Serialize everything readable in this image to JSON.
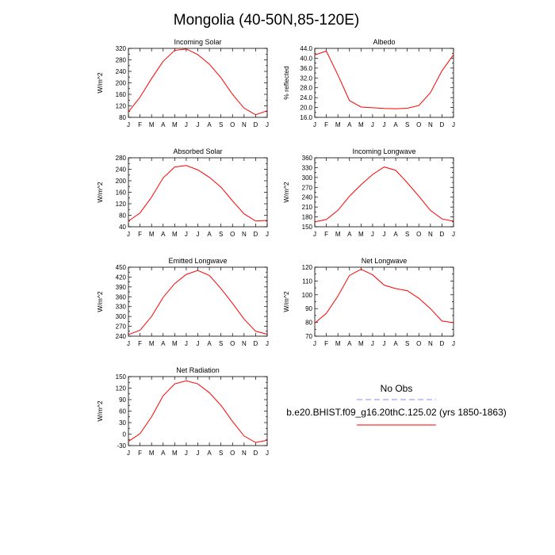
{
  "title": "Mongolia (40-50N,85-120E)",
  "chart_data": [
    {
      "type": "line",
      "title": "Incoming Solar",
      "ylabel": "W/m^2",
      "categories": [
        "J",
        "F",
        "M",
        "A",
        "M",
        "J",
        "J",
        "A",
        "S",
        "O",
        "N",
        "D",
        "J"
      ],
      "ylim": [
        80,
        320
      ],
      "yticks": [
        "80",
        "120",
        "160",
        "200",
        "240",
        "280",
        "320"
      ],
      "values": [
        99,
        150,
        215,
        275,
        313,
        318,
        298,
        265,
        218,
        160,
        112,
        89,
        103
      ]
    },
    {
      "type": "line",
      "title": "Albedo",
      "ylabel": "% reflected",
      "categories": [
        "J",
        "F",
        "M",
        "A",
        "M",
        "J",
        "J",
        "A",
        "S",
        "O",
        "N",
        "D",
        "J"
      ],
      "ylim": [
        16,
        44
      ],
      "yticks": [
        "16.0",
        "20.0",
        "24.0",
        "28.0",
        "32.0",
        "36.0",
        "40.0",
        "44.0"
      ],
      "values": [
        41.3,
        42.9,
        33.2,
        22.8,
        20.2,
        19.9,
        19.6,
        19.5,
        19.7,
        20.8,
        26.0,
        34.9,
        41.4
      ]
    },
    {
      "type": "line",
      "title": "Absorbed Solar",
      "ylabel": "W/m^2",
      "categories": [
        "J",
        "F",
        "M",
        "A",
        "M",
        "J",
        "J",
        "A",
        "S",
        "O",
        "N",
        "D",
        "J"
      ],
      "ylim": [
        40,
        280
      ],
      "yticks": [
        "40",
        "80",
        "120",
        "160",
        "200",
        "240",
        "280"
      ],
      "values": [
        60,
        88,
        143,
        210,
        248,
        253,
        238,
        212,
        178,
        130,
        85,
        60,
        62
      ]
    },
    {
      "type": "line",
      "title": "Incoming Longwave",
      "ylabel": "W/m^2",
      "categories": [
        "J",
        "F",
        "M",
        "A",
        "M",
        "J",
        "J",
        "A",
        "S",
        "O",
        "N",
        "D",
        "J"
      ],
      "ylim": [
        150,
        360
      ],
      "yticks": [
        "150",
        "180",
        "210",
        "240",
        "270",
        "300",
        "330",
        "360"
      ],
      "values": [
        165,
        172,
        200,
        243,
        278,
        309,
        332,
        322,
        284,
        243,
        200,
        174,
        167
      ]
    },
    {
      "type": "line",
      "title": "Emitted Longwave",
      "ylabel": "W/m^2",
      "categories": [
        "J",
        "F",
        "M",
        "A",
        "M",
        "J",
        "J",
        "A",
        "S",
        "O",
        "N",
        "D",
        "J"
      ],
      "ylim": [
        240,
        450
      ],
      "yticks": [
        "240",
        "270",
        "300",
        "330",
        "360",
        "390",
        "420",
        "450"
      ],
      "values": [
        245,
        258,
        300,
        358,
        400,
        428,
        440,
        425,
        385,
        340,
        292,
        255,
        246
      ]
    },
    {
      "type": "line",
      "title": "Net Longwave",
      "ylabel": "W/m^2",
      "categories": [
        "J",
        "F",
        "M",
        "A",
        "M",
        "J",
        "J",
        "A",
        "S",
        "O",
        "N",
        "D",
        "J"
      ],
      "ylim": [
        70,
        120
      ],
      "yticks": [
        "70",
        "80",
        "90",
        "100",
        "110",
        "120"
      ],
      "values": [
        79.5,
        86.5,
        99,
        114,
        118.5,
        114.5,
        107,
        104.5,
        103,
        97.5,
        90,
        81,
        79.8
      ]
    },
    {
      "type": "line",
      "title": "Net Radiation",
      "ylabel": "W/m^2",
      "categories": [
        "J",
        "F",
        "M",
        "A",
        "M",
        "J",
        "J",
        "A",
        "S",
        "O",
        "N",
        "D",
        "J"
      ],
      "ylim": [
        -30,
        150
      ],
      "yticks": [
        "-30",
        "0",
        "30",
        "60",
        "90",
        "120",
        "150"
      ],
      "values": [
        -19,
        1,
        45,
        100,
        131,
        139,
        131,
        108,
        75,
        33,
        -5,
        -22,
        -16
      ]
    }
  ],
  "legend": {
    "obs_label": "No Obs",
    "model_label": "b.e20.BHIST.f09_g16.20thC.125.02 (yrs 1850-1863)",
    "obs_color": "#8a8aff",
    "model_color": "#ff0000"
  }
}
